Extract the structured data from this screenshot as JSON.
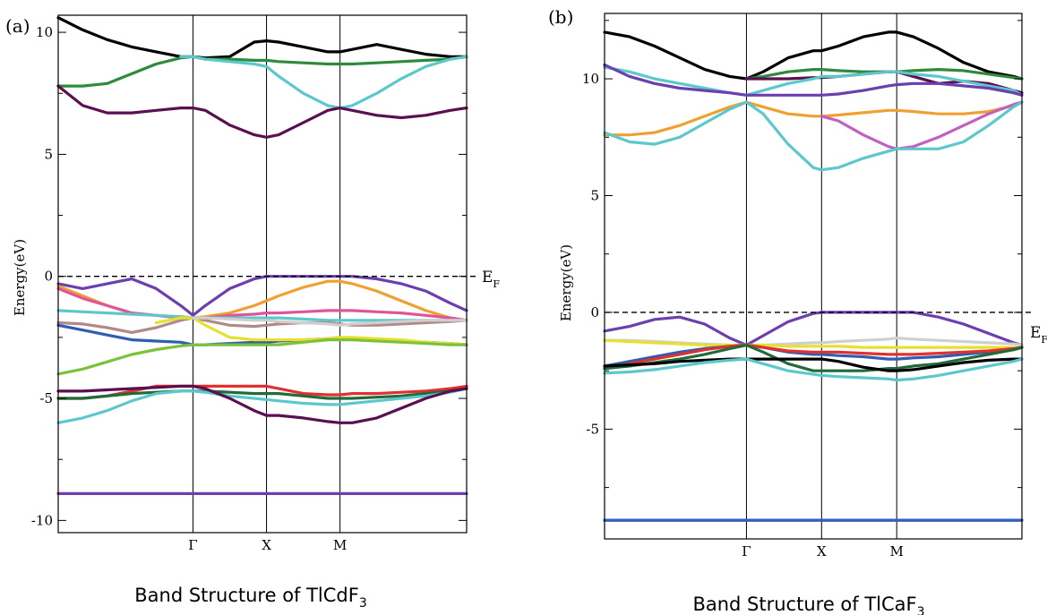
{
  "chart_data": [
    {
      "type": "line",
      "panel_label": "(a)",
      "caption": "Band Structure of TlCdF",
      "caption_sub": "3",
      "ylabel": "Energy(eV)",
      "fermi_label": "E",
      "fermi_sub": "F",
      "ylim": [
        -10.5,
        10.7
      ],
      "y_ticks": [
        10,
        5,
        0,
        -5,
        -10
      ],
      "y_tick_labels": [
        "10",
        "5",
        "0",
        "-5",
        "-10"
      ],
      "k_points": [
        {
          "label": "Γ",
          "x": 0.33
        },
        {
          "label": "X",
          "x": 0.51
        },
        {
          "label": "M",
          "x": 0.69
        }
      ],
      "x": [
        0.0,
        0.06,
        0.12,
        0.18,
        0.24,
        0.3,
        0.33,
        0.36,
        0.42,
        0.48,
        0.51,
        0.54,
        0.6,
        0.66,
        0.69,
        0.72,
        0.78,
        0.84,
        0.9,
        0.96,
        1.0
      ],
      "series": [
        {
          "color": "#000000",
          "values": [
            10.6,
            10.1,
            9.7,
            9.4,
            9.2,
            9.0,
            9.0,
            8.95,
            9.0,
            9.6,
            9.65,
            9.6,
            9.4,
            9.2,
            9.2,
            9.3,
            9.5,
            9.3,
            9.1,
            9.0,
            9.0
          ]
        },
        {
          "color": "#2e8b3e",
          "values": [
            7.8,
            7.8,
            7.9,
            8.3,
            8.7,
            8.95,
            9.0,
            8.9,
            8.9,
            8.85,
            8.85,
            8.8,
            8.75,
            8.7,
            8.7,
            8.7,
            8.75,
            8.8,
            8.85,
            8.9,
            9.0
          ]
        },
        {
          "color": "#5cc8cc",
          "values": [
            null,
            null,
            null,
            null,
            null,
            9.0,
            9.0,
            8.9,
            8.8,
            8.7,
            8.6,
            8.2,
            7.5,
            7.0,
            6.9,
            7.0,
            7.5,
            8.1,
            8.6,
            8.9,
            9.0
          ]
        },
        {
          "color": "#5a1050",
          "values": [
            7.8,
            7.0,
            6.7,
            6.7,
            6.8,
            6.9,
            6.9,
            6.8,
            6.2,
            5.8,
            5.7,
            5.8,
            6.3,
            6.8,
            6.9,
            6.8,
            6.6,
            6.5,
            6.6,
            6.8,
            6.9
          ]
        },
        {
          "color": "#6b3fb0",
          "values": [
            -0.3,
            -0.5,
            -0.3,
            -0.1,
            -0.5,
            -1.2,
            -1.6,
            -1.2,
            -0.5,
            -0.1,
            0.0,
            0.0,
            0.0,
            0.0,
            0.0,
            0.0,
            -0.1,
            -0.3,
            -0.6,
            -1.1,
            -1.4
          ]
        },
        {
          "color": "#f0a030",
          "values": [
            -0.4,
            -0.8,
            -1.2,
            -1.5,
            -1.6,
            -1.7,
            -1.7,
            -1.65,
            -1.5,
            -1.2,
            -1.0,
            -0.8,
            -0.45,
            -0.2,
            -0.2,
            -0.3,
            -0.6,
            -1.0,
            -1.4,
            -1.7,
            -1.8
          ]
        },
        {
          "color": "#e0559a",
          "values": [
            -0.5,
            -0.9,
            -1.2,
            -1.5,
            -1.6,
            -1.7,
            -1.7,
            -1.7,
            -1.6,
            -1.55,
            -1.5,
            -1.5,
            -1.45,
            -1.4,
            -1.4,
            -1.4,
            -1.45,
            -1.5,
            -1.6,
            -1.7,
            -1.8
          ]
        },
        {
          "color": "#5cc8cc",
          "values": [
            -1.4,
            -1.45,
            -1.5,
            -1.55,
            -1.6,
            -1.65,
            -1.7,
            -1.7,
            -1.7,
            -1.7,
            -1.7,
            -1.7,
            -1.75,
            -1.8,
            -1.8,
            -1.8,
            -1.8,
            -1.8,
            -1.8,
            -1.8,
            -1.8
          ]
        },
        {
          "color": "#2f5db0",
          "values": [
            -2.0,
            -2.2,
            -2.4,
            -2.6,
            -2.65,
            -2.7,
            -2.8,
            -2.8,
            -2.75,
            -2.7,
            -2.7,
            -2.65,
            -2.6,
            -2.55,
            -2.5,
            -2.55,
            -2.6,
            -2.65,
            -2.7,
            -2.75,
            -2.8
          ]
        },
        {
          "color": "#b08a8a",
          "values": [
            -1.9,
            -1.95,
            -2.1,
            -2.3,
            -2.1,
            -1.8,
            -1.7,
            -1.8,
            -2.0,
            -2.05,
            -2.0,
            -1.95,
            -1.9,
            -1.9,
            -1.95,
            -2.0,
            -2.0,
            -1.95,
            -1.9,
            -1.85,
            -1.8
          ]
        },
        {
          "color": "#e8e030",
          "values": [
            null,
            null,
            null,
            null,
            -1.9,
            -1.7,
            -1.7,
            -2.0,
            -2.5,
            -2.6,
            -2.6,
            -2.6,
            -2.6,
            -2.55,
            -2.5,
            -2.5,
            -2.55,
            -2.6,
            -2.7,
            -2.75,
            -2.8
          ]
        },
        {
          "color": "#cfcfcf",
          "values": [
            null,
            null,
            null,
            null,
            null,
            null,
            -1.7,
            -1.7,
            -1.75,
            -1.8,
            -1.8,
            -1.85,
            -1.9,
            -1.95,
            -2.0,
            -1.95,
            -1.9,
            -1.85,
            -1.8,
            -1.8,
            -1.8
          ]
        },
        {
          "color": "#7bc23b",
          "values": [
            -4.0,
            -3.8,
            -3.5,
            -3.2,
            -3.0,
            -2.85,
            -2.8,
            -2.8,
            -2.8,
            -2.8,
            -2.8,
            -2.8,
            -2.7,
            -2.6,
            -2.6,
            -2.6,
            -2.65,
            -2.7,
            -2.75,
            -2.8,
            -2.8
          ]
        },
        {
          "color": "#e03030",
          "values": [
            -5.0,
            -5.0,
            -4.9,
            -4.7,
            -4.5,
            -4.5,
            -4.5,
            -4.5,
            -4.5,
            -4.5,
            -4.5,
            -4.6,
            -4.8,
            -4.85,
            -4.85,
            -4.8,
            -4.8,
            -4.75,
            -4.7,
            -4.6,
            -4.5
          ]
        },
        {
          "color": "#1f6b3a",
          "values": [
            -5.0,
            -5.0,
            -4.9,
            -4.8,
            -4.75,
            -4.7,
            -4.7,
            -4.7,
            -4.75,
            -4.8,
            -4.8,
            -4.8,
            -4.9,
            -5.0,
            -5.0,
            -5.0,
            -4.95,
            -4.9,
            -4.8,
            -4.7,
            -4.6
          ]
        },
        {
          "color": "#5cc8cc",
          "values": [
            -6.0,
            -5.8,
            -5.5,
            -5.1,
            -4.8,
            -4.7,
            -4.7,
            -4.75,
            -4.9,
            -5.0,
            -5.05,
            -5.1,
            -5.2,
            -5.25,
            -5.25,
            -5.2,
            -5.1,
            -5.0,
            -4.9,
            -4.75,
            -4.6
          ]
        },
        {
          "color": "#5a1050",
          "values": [
            -4.7,
            -4.7,
            -4.65,
            -4.6,
            -4.55,
            -4.5,
            -4.5,
            -4.6,
            -5.0,
            -5.5,
            -5.7,
            -5.7,
            -5.8,
            -5.95,
            -6.0,
            -6.0,
            -5.8,
            -5.4,
            -5.0,
            -4.7,
            -4.6
          ]
        },
        {
          "color": "#6b3fb0",
          "values": [
            -8.9,
            -8.9,
            -8.9,
            -8.9,
            -8.9,
            -8.9,
            -8.9,
            -8.9,
            -8.9,
            -8.9,
            -8.9,
            -8.9,
            -8.9,
            -8.9,
            -8.9,
            -8.9,
            -8.9,
            -8.9,
            -8.9,
            -8.9,
            -8.9
          ]
        }
      ]
    },
    {
      "type": "line",
      "panel_label": "(b)",
      "caption": "Band Structure of TlCaF",
      "caption_sub": "3",
      "ylabel": "Energy(eV)",
      "fermi_label": "E",
      "fermi_sub": "F",
      "ylim": [
        -9.7,
        12.8
      ],
      "y_ticks": [
        10,
        5,
        0,
        -5
      ],
      "y_tick_labels": [
        "10",
        "5",
        "0",
        "-5"
      ],
      "k_points": [
        {
          "label": "Γ",
          "x": 0.34
        },
        {
          "label": "X",
          "x": 0.52
        },
        {
          "label": "M",
          "x": 0.7
        }
      ],
      "x": [
        0.0,
        0.06,
        0.12,
        0.18,
        0.24,
        0.3,
        0.34,
        0.38,
        0.44,
        0.5,
        0.52,
        0.56,
        0.62,
        0.68,
        0.7,
        0.74,
        0.8,
        0.86,
        0.92,
        0.98,
        1.0
      ],
      "series": [
        {
          "color": "#000000",
          "values": [
            12.0,
            11.8,
            11.4,
            10.9,
            10.4,
            10.1,
            10.0,
            10.3,
            10.9,
            11.2,
            11.2,
            11.4,
            11.8,
            12.0,
            12.0,
            11.8,
            11.3,
            10.7,
            10.3,
            10.1,
            10.0
          ]
        },
        {
          "color": "#2e8b3e",
          "values": [
            null,
            null,
            null,
            null,
            null,
            null,
            10.0,
            10.1,
            10.3,
            10.4,
            10.4,
            10.35,
            10.3,
            10.3,
            10.3,
            10.35,
            10.4,
            10.35,
            10.2,
            10.05,
            10.0
          ]
        },
        {
          "color": "#5a1050",
          "values": [
            null,
            null,
            null,
            null,
            null,
            null,
            10.0,
            10.0,
            10.0,
            10.05,
            10.05,
            10.1,
            10.2,
            10.3,
            10.3,
            10.1,
            9.8,
            9.9,
            9.8,
            9.5,
            9.4
          ]
        },
        {
          "color": "#5cc8cc",
          "values": [
            10.5,
            10.3,
            10.0,
            9.8,
            9.6,
            9.4,
            9.3,
            9.5,
            9.8,
            10.0,
            10.1,
            10.1,
            10.2,
            10.3,
            10.3,
            10.2,
            10.1,
            9.9,
            9.7,
            9.5,
            9.3
          ]
        },
        {
          "color": "#6b3fb0",
          "values": [
            10.6,
            10.1,
            9.8,
            9.6,
            9.5,
            9.4,
            9.3,
            9.3,
            9.3,
            9.3,
            9.3,
            9.35,
            9.5,
            9.7,
            9.75,
            9.8,
            9.8,
            9.7,
            9.6,
            9.4,
            9.3
          ]
        },
        {
          "color": "#f0a030",
          "values": [
            7.6,
            7.6,
            7.7,
            8.0,
            8.4,
            8.8,
            9.0,
            8.8,
            8.5,
            8.4,
            8.4,
            8.45,
            8.55,
            8.65,
            8.65,
            8.6,
            8.5,
            8.5,
            8.6,
            8.85,
            9.0
          ]
        },
        {
          "color": "#c060c0",
          "values": [
            null,
            null,
            null,
            null,
            null,
            null,
            null,
            null,
            null,
            null,
            8.4,
            8.2,
            7.6,
            7.1,
            7.0,
            7.1,
            7.5,
            8.0,
            8.5,
            8.9,
            9.0
          ]
        },
        {
          "color": "#5cc8cc",
          "values": [
            7.7,
            7.3,
            7.2,
            7.5,
            8.1,
            8.7,
            9.0,
            8.5,
            7.2,
            6.2,
            6.1,
            6.2,
            6.6,
            6.9,
            7.0,
            7.0,
            7.0,
            7.3,
            8.0,
            8.8,
            9.0
          ]
        },
        {
          "color": "#6b3fb0",
          "values": [
            -0.8,
            -0.6,
            -0.3,
            -0.2,
            -0.5,
            -1.1,
            -1.4,
            -1.0,
            -0.4,
            -0.05,
            0.0,
            0.0,
            0.0,
            0.0,
            0.0,
            0.0,
            -0.2,
            -0.5,
            -0.9,
            -1.3,
            -1.4
          ]
        },
        {
          "color": "#cfcfcf",
          "values": [
            -1.2,
            -1.2,
            -1.25,
            -1.3,
            -1.35,
            -1.4,
            -1.4,
            -1.4,
            -1.35,
            -1.3,
            -1.3,
            -1.25,
            -1.2,
            -1.15,
            -1.1,
            -1.15,
            -1.2,
            -1.25,
            -1.3,
            -1.35,
            -1.4
          ]
        },
        {
          "color": "#e8e030",
          "values": [
            -1.2,
            -1.25,
            -1.3,
            -1.35,
            -1.4,
            -1.4,
            -1.4,
            -1.4,
            -1.45,
            -1.45,
            -1.45,
            -1.45,
            -1.5,
            -1.5,
            -1.5,
            -1.5,
            -1.5,
            -1.5,
            -1.5,
            -1.5,
            -1.5
          ]
        },
        {
          "color": "#2f5db0",
          "values": [
            -2.3,
            -2.1,
            -1.9,
            -1.7,
            -1.55,
            -1.45,
            -1.4,
            -1.5,
            -1.7,
            -1.8,
            -1.8,
            -1.85,
            -1.9,
            -2.0,
            -2.0,
            -1.95,
            -1.9,
            -1.8,
            -1.7,
            -1.6,
            -1.5
          ]
        },
        {
          "color": "#e03030",
          "values": [
            -2.4,
            -2.2,
            -2.0,
            -1.8,
            -1.6,
            -1.45,
            -1.4,
            -1.5,
            -1.65,
            -1.7,
            -1.7,
            -1.7,
            -1.75,
            -1.8,
            -1.8,
            -1.8,
            -1.75,
            -1.7,
            -1.65,
            -1.55,
            -1.5
          ]
        },
        {
          "color": "#1f6b3a",
          "values": [
            -2.4,
            -2.3,
            -2.15,
            -2.0,
            -1.8,
            -1.55,
            -1.4,
            -1.7,
            -2.2,
            -2.5,
            -2.5,
            -2.5,
            -2.5,
            -2.4,
            -2.4,
            -2.3,
            -2.2,
            -2.0,
            -1.8,
            -1.6,
            -1.5
          ]
        },
        {
          "color": "#000000",
          "values": [
            -2.3,
            -2.25,
            -2.2,
            -2.1,
            -2.05,
            -2.0,
            -2.0,
            -2.0,
            -2.0,
            -2.0,
            -2.0,
            -2.1,
            -2.35,
            -2.5,
            -2.5,
            -2.45,
            -2.3,
            -2.15,
            -2.05,
            -2.0,
            -2.0
          ]
        },
        {
          "color": "#5cc8cc",
          "values": [
            -2.6,
            -2.55,
            -2.45,
            -2.3,
            -2.15,
            -2.05,
            -2.0,
            -2.2,
            -2.5,
            -2.65,
            -2.7,
            -2.75,
            -2.8,
            -2.85,
            -2.9,
            -2.85,
            -2.7,
            -2.5,
            -2.3,
            -2.1,
            -2.0
          ]
        },
        {
          "color": "#c02030",
          "values": [
            -8.9,
            -8.9,
            -8.9,
            -8.9,
            -8.9,
            -8.9,
            -8.9,
            -8.9,
            -8.9,
            -8.9,
            -8.9,
            -8.9,
            -8.9,
            -8.9,
            -8.9,
            -8.9,
            -8.9,
            -8.9,
            -8.9,
            -8.9,
            -8.9
          ]
        },
        {
          "color": "#3060c0",
          "values": [
            -8.9,
            -8.9,
            -8.9,
            -8.9,
            -8.9,
            -8.9,
            -8.9,
            -8.9,
            -8.9,
            -8.9,
            -8.9,
            -8.9,
            -8.9,
            -8.9,
            -8.9,
            -8.9,
            -8.9,
            -8.9,
            -8.9,
            -8.9,
            -8.9
          ]
        }
      ]
    }
  ]
}
